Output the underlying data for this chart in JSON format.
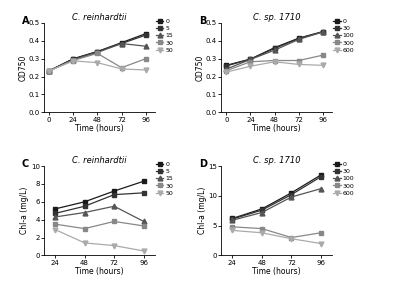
{
  "panel_A": {
    "title": "C. reinhardtii",
    "xlabel": "Time (hours)",
    "ylabel": "OD750",
    "xlim": [
      -5,
      105
    ],
    "ylim": [
      0.0,
      0.5
    ],
    "yticks": [
      0.0,
      0.1,
      0.2,
      0.3,
      0.4,
      0.5
    ],
    "xticks": [
      0,
      24,
      48,
      72,
      96
    ],
    "x": [
      0,
      24,
      48,
      72,
      96
    ],
    "series": {
      "0": [
        0.232,
        0.3,
        0.34,
        0.39,
        0.44
      ],
      "5": [
        0.232,
        0.298,
        0.34,
        0.385,
        0.432
      ],
      "15": [
        0.232,
        0.295,
        0.335,
        0.385,
        0.37
      ],
      "30": [
        0.232,
        0.29,
        0.33,
        0.25,
        0.3
      ],
      "50": [
        0.232,
        0.288,
        0.278,
        0.243,
        0.237
      ]
    },
    "legend_labels": [
      "0",
      "5",
      "15",
      "30",
      "50"
    ],
    "label": "A"
  },
  "panel_B": {
    "title": "C. sp. 1710",
    "xlabel": "Time (hours)",
    "ylabel": "OD750",
    "xlim": [
      -5,
      105
    ],
    "ylim": [
      0.0,
      0.5
    ],
    "yticks": [
      0.0,
      0.1,
      0.2,
      0.3,
      0.4,
      0.5
    ],
    "xticks": [
      0,
      24,
      48,
      72,
      96
    ],
    "x": [
      0,
      24,
      48,
      72,
      96
    ],
    "series": {
      "0": [
        0.263,
        0.298,
        0.362,
        0.415,
        0.452
      ],
      "30": [
        0.26,
        0.297,
        0.358,
        0.413,
        0.45
      ],
      "100": [
        0.242,
        0.296,
        0.348,
        0.408,
        0.45
      ],
      "300": [
        0.233,
        0.283,
        0.29,
        0.29,
        0.32
      ],
      "600": [
        0.225,
        0.258,
        0.283,
        0.268,
        0.263
      ]
    },
    "legend_labels": [
      "0",
      "30",
      "100",
      "300",
      "600"
    ],
    "label": "B"
  },
  "panel_C": {
    "title": "C. reinhardtii",
    "xlabel": "Time (hours)",
    "ylabel": "Chl-a (mg/L)",
    "xlim": [
      15,
      105
    ],
    "ylim": [
      0,
      10
    ],
    "yticks": [
      0,
      2,
      4,
      6,
      8,
      10
    ],
    "xticks": [
      24,
      48,
      72,
      96
    ],
    "x": [
      24,
      48,
      72,
      96
    ],
    "series": {
      "0": [
        5.2,
        6.0,
        7.2,
        8.3
      ],
      "5": [
        4.7,
        5.5,
        6.8,
        7.0
      ],
      "15": [
        4.3,
        4.8,
        5.5,
        3.8
      ],
      "30": [
        3.5,
        3.0,
        3.8,
        3.3
      ],
      "50": [
        2.9,
        1.4,
        1.1,
        0.5
      ]
    },
    "legend_labels": [
      "0",
      "5",
      "15",
      "30",
      "50"
    ],
    "label": "C"
  },
  "panel_D": {
    "title": "C. sp. 1710",
    "xlabel": "Time (hours)",
    "ylabel": "Chl-a (mg/L)",
    "xlim": [
      15,
      105
    ],
    "ylim": [
      0,
      15
    ],
    "yticks": [
      0,
      5,
      10,
      15
    ],
    "xticks": [
      24,
      48,
      72,
      96
    ],
    "x": [
      24,
      48,
      72,
      96
    ],
    "series": {
      "0": [
        6.2,
        7.8,
        10.5,
        13.5
      ],
      "30": [
        6.1,
        7.6,
        10.2,
        13.2
      ],
      "100": [
        5.9,
        7.2,
        9.8,
        11.2
      ],
      "300": [
        4.8,
        4.5,
        3.0,
        3.8
      ],
      "600": [
        4.2,
        3.8,
        2.8,
        2.0
      ]
    },
    "legend_labels": [
      "0",
      "30",
      "100",
      "300",
      "600"
    ],
    "label": "D"
  },
  "series_styles": [
    {
      "marker": "s",
      "color": "#1a1a1a",
      "mfc": "#1a1a1a",
      "mec": "#1a1a1a"
    },
    {
      "marker": "s",
      "color": "#333333",
      "mfc": "#333333",
      "mec": "#333333"
    },
    {
      "marker": "^",
      "color": "#555555",
      "mfc": "#555555",
      "mec": "#555555"
    },
    {
      "marker": "s",
      "color": "#888888",
      "mfc": "#888888",
      "mec": "#888888"
    },
    {
      "marker": "v",
      "color": "#aaaaaa",
      "mfc": "#aaaaaa",
      "mec": "#aaaaaa"
    }
  ],
  "markersize": 3.5,
  "linewidth": 0.9,
  "title_style": "italic",
  "bg_color": "#ffffff"
}
